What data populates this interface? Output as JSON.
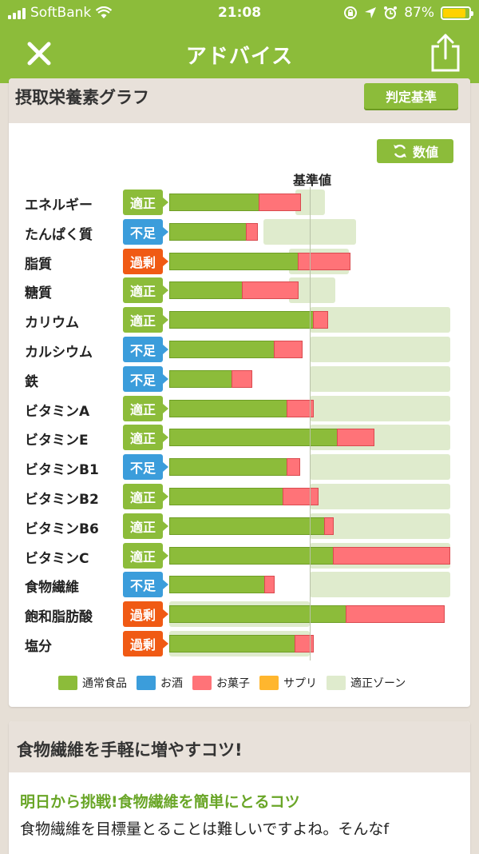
{
  "status": {
    "carrier": "SoftBank",
    "time": "21:08",
    "battery": "87%",
    "battery_level": 0.87
  },
  "nav": {
    "title": "アドバイス"
  },
  "chart_card": {
    "title": "摂取栄養素グラフ",
    "criteria_button": "判定基準",
    "values_button": "数値",
    "reference_label": "基準値"
  },
  "chart_data": {
    "type": "bar",
    "orientation": "horizontal",
    "stacked": true,
    "unit": "percent of reference value (reference = 100)",
    "xlim": [
      0,
      200
    ],
    "categories": [
      "エネルギー",
      "たんぱく質",
      "脂質",
      "糖質",
      "カリウム",
      "カルシウム",
      "鉄",
      "ビタミンA",
      "ビタミンE",
      "ビタミンB1",
      "ビタミンB2",
      "ビタミンB6",
      "ビタミンC",
      "食物繊維",
      "飽和脂肪酸",
      "塩分"
    ],
    "status": [
      "適正",
      "不足",
      "過剰",
      "適正",
      "適正",
      "不足",
      "不足",
      "適正",
      "適正",
      "不足",
      "適正",
      "適正",
      "適正",
      "不足",
      "過剰",
      "過剰"
    ],
    "status_kind": [
      "ok",
      "low",
      "high",
      "ok",
      "ok",
      "low",
      "low",
      "ok",
      "ok",
      "low",
      "ok",
      "ok",
      "ok",
      "low",
      "high",
      "high"
    ],
    "series": [
      {
        "name": "通常食品",
        "color": "#8cbc3a",
        "values": [
          64,
          55,
          92,
          52,
          103,
          75,
          45,
          84,
          120,
          84,
          81,
          111,
          117,
          68,
          126,
          90
        ]
      },
      {
        "name": "お酒",
        "color": "#3b9ddb",
        "values": [
          0,
          0,
          0,
          0,
          0,
          0,
          0,
          0,
          0,
          0,
          0,
          0,
          0,
          0,
          0,
          0
        ]
      },
      {
        "name": "お菓子",
        "color": "#ff7378",
        "values": [
          30,
          8,
          37,
          40,
          10,
          20,
          14,
          19,
          26,
          9,
          25,
          6,
          83,
          7,
          70,
          13
        ]
      },
      {
        "name": "サプリ",
        "color": "#ffb62e",
        "values": [
          0,
          0,
          0,
          0,
          0,
          0,
          0,
          0,
          0,
          0,
          0,
          0,
          0,
          0,
          0,
          0
        ]
      }
    ],
    "appropriate_zone": [
      [
        90,
        111
      ],
      [
        67,
        133
      ],
      [
        85,
        128
      ],
      [
        85,
        118
      ],
      [
        100,
        200
      ],
      [
        100,
        200
      ],
      [
        100,
        200
      ],
      [
        100,
        200
      ],
      [
        100,
        200
      ],
      [
        100,
        200
      ],
      [
        100,
        200
      ],
      [
        100,
        200
      ],
      [
        100,
        200
      ],
      [
        100,
        200
      ],
      [
        0,
        100
      ],
      [
        0,
        100
      ]
    ],
    "legend": [
      {
        "label": "通常食品",
        "color": "#8cbc3a"
      },
      {
        "label": "お酒",
        "color": "#3b9ddb"
      },
      {
        "label": "お菓子",
        "color": "#ff7378"
      },
      {
        "label": "サプリ",
        "color": "#ffb62e"
      },
      {
        "label": "適正ゾーン",
        "color": "#dfebcd"
      }
    ]
  },
  "tips_card": {
    "title": "食物繊維を手軽に増やすコツ!",
    "tip_title": "明日から挑戦!食物繊維を簡単にとるコツ",
    "tip_body": "食物繊維を目標量とることは難しいですよね。そんなf"
  }
}
